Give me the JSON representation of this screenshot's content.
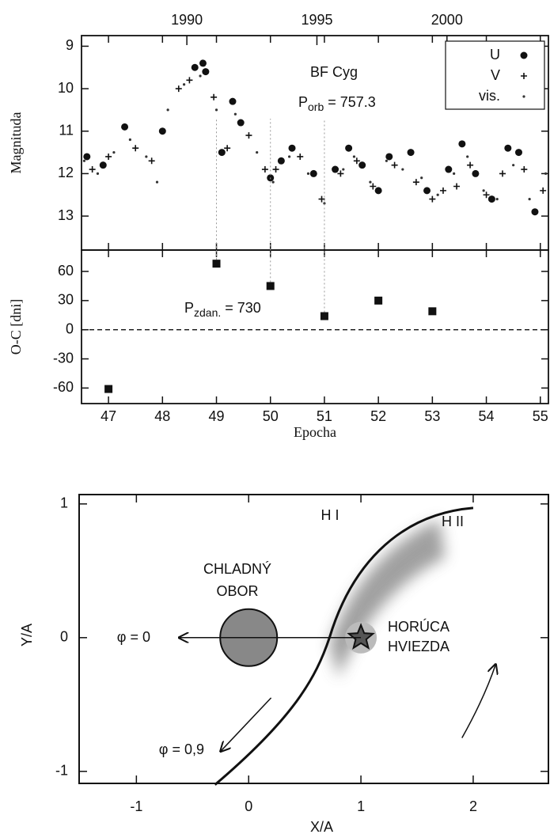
{
  "chart_data": [
    {
      "type": "scatter",
      "title": "BF Cyg",
      "annotation": {
        "base": "P",
        "sub": "orb",
        "text": "= 757.3"
      },
      "ylabel": "Magnituda",
      "xlim": [
        46.5,
        55.15
      ],
      "x2lim": [
        1985.95,
        2003.9
      ],
      "x2ticks": [
        1990,
        1995,
        2000
      ],
      "ylim": [
        13.8,
        8.75
      ],
      "yticks": [
        9,
        10,
        11,
        12,
        13
      ],
      "legend": "upper right",
      "series": [
        {
          "name": "U",
          "marker": "circle",
          "color": "#111111",
          "x": [
            46.6,
            46.9,
            47.3,
            48.0,
            48.6,
            48.75,
            48.8,
            49.1,
            49.3,
            49.45,
            50.0,
            50.2,
            50.4,
            50.8,
            51.2,
            51.45,
            51.7,
            52.0,
            52.2,
            52.6,
            52.9,
            53.3,
            53.55,
            53.8,
            54.1,
            54.4,
            54.6,
            54.9
          ],
          "values": [
            11.6,
            11.8,
            10.9,
            11.0,
            9.5,
            9.4,
            9.6,
            11.5,
            10.3,
            10.8,
            12.1,
            11.7,
            11.4,
            12.0,
            11.9,
            11.4,
            11.8,
            12.4,
            11.6,
            11.5,
            12.4,
            11.9,
            11.3,
            12.0,
            12.6,
            11.4,
            11.5,
            12.9
          ]
        },
        {
          "name": "V",
          "marker": "plus",
          "color": "#111111",
          "x": [
            46.7,
            47.0,
            47.5,
            47.8,
            48.3,
            48.5,
            48.95,
            49.2,
            49.6,
            49.9,
            50.1,
            50.55,
            50.95,
            51.3,
            51.6,
            51.9,
            52.3,
            52.7,
            53.0,
            53.2,
            53.45,
            53.7,
            54.0,
            54.3,
            54.7,
            55.05
          ],
          "values": [
            11.9,
            11.6,
            11.4,
            11.7,
            10.0,
            9.8,
            10.2,
            11.4,
            11.1,
            11.9,
            11.9,
            11.6,
            12.6,
            12.0,
            11.7,
            12.3,
            11.8,
            12.2,
            12.6,
            12.4,
            12.3,
            11.8,
            12.5,
            12.0,
            11.9,
            12.4
          ]
        },
        {
          "name": "vis.",
          "marker": "dot",
          "color": "#333333",
          "x": [
            46.55,
            46.8,
            47.1,
            47.4,
            47.7,
            47.9,
            48.1,
            48.4,
            48.7,
            49.0,
            49.35,
            49.75,
            50.05,
            50.35,
            50.7,
            51.0,
            51.35,
            51.55,
            51.85,
            52.15,
            52.45,
            52.8,
            53.1,
            53.4,
            53.65,
            53.95,
            54.2,
            54.5,
            54.8,
            55.1
          ],
          "values": [
            11.7,
            12.0,
            11.5,
            11.2,
            11.6,
            12.2,
            10.5,
            9.9,
            9.7,
            10.5,
            10.6,
            11.5,
            12.2,
            11.6,
            12.0,
            12.7,
            11.9,
            11.6,
            12.2,
            11.7,
            11.9,
            12.1,
            12.5,
            12.0,
            11.6,
            12.4,
            12.6,
            11.8,
            12.6,
            12.0
          ]
        }
      ]
    },
    {
      "type": "scatter",
      "ylabel": "O-C [dni]",
      "xlabel": "Epocha",
      "annotation": {
        "base": "P",
        "sub": "zdan.",
        "text": "= 730"
      },
      "x": [
        47,
        49,
        50,
        51,
        52,
        53
      ],
      "values": [
        -61,
        68,
        45,
        14,
        30,
        19
      ],
      "marker": "square",
      "color": "#111111",
      "xlim": [
        46.5,
        55.15
      ],
      "xticks": [
        47,
        48,
        49,
        50,
        51,
        52,
        53,
        54,
        55
      ],
      "ylim": [
        -76,
        82
      ],
      "yticks": [
        60,
        30,
        0,
        -30,
        -60
      ]
    },
    {
      "type": "diagram",
      "xlabel": "X/A",
      "ylabel": "Y/A",
      "xlim": [
        -1.51,
        2.67
      ],
      "ylim": [
        -1.09,
        1.07
      ],
      "xticks": [
        -1,
        0,
        1,
        2
      ],
      "yticks": [
        -1,
        0,
        1
      ],
      "labels": [
        "H I",
        "H II",
        "CHLADNÝ",
        "OBOR",
        "HORÚCA",
        "HVIEZDA",
        "φ = 0",
        "φ = 0,9"
      ]
    }
  ]
}
